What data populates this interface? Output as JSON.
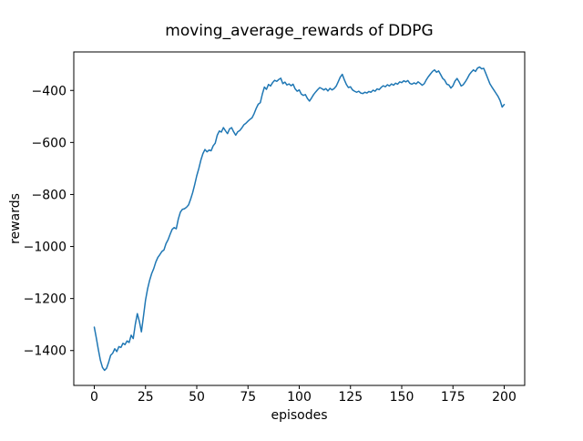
{
  "figure": {
    "background": "#ffffff"
  },
  "chart_data": {
    "type": "line",
    "title": "moving_average_rewards of DDPG",
    "xlabel": "episodes",
    "ylabel": "rewards",
    "grid": false,
    "xlim": [
      -10,
      210
    ],
    "ylim": [
      -1534,
      -252
    ],
    "xticks": [
      {
        "v": 0,
        "label": "0"
      },
      {
        "v": 25,
        "label": "25"
      },
      {
        "v": 50,
        "label": "50"
      },
      {
        "v": 75,
        "label": "75"
      },
      {
        "v": 100,
        "label": "100"
      },
      {
        "v": 125,
        "label": "125"
      },
      {
        "v": 150,
        "label": "150"
      },
      {
        "v": 175,
        "label": "175"
      },
      {
        "v": 200,
        "label": "200"
      }
    ],
    "yticks": [
      {
        "v": -400,
        "label": "−400"
      },
      {
        "v": -600,
        "label": "−600"
      },
      {
        "v": -800,
        "label": "−800"
      },
      {
        "v": -1000,
        "label": "−1000"
      },
      {
        "v": -1200,
        "label": "−1200"
      },
      {
        "v": -1400,
        "label": "−1400"
      }
    ],
    "series": [
      {
        "name": "moving_average_rewards",
        "color": "#1f77b4",
        "x_start": 0,
        "x_step": 1,
        "values": [
          -1310,
          -1352,
          -1397,
          -1438,
          -1465,
          -1476,
          -1468,
          -1445,
          -1418,
          -1410,
          -1393,
          -1404,
          -1385,
          -1388,
          -1372,
          -1377,
          -1363,
          -1369,
          -1341,
          -1354,
          -1300,
          -1258,
          -1288,
          -1328,
          -1268,
          -1206,
          -1163,
          -1130,
          -1104,
          -1085,
          -1060,
          -1042,
          -1031,
          -1019,
          -1013,
          -989,
          -974,
          -953,
          -934,
          -927,
          -932,
          -894,
          -868,
          -857,
          -855,
          -849,
          -840,
          -818,
          -793,
          -762,
          -728,
          -700,
          -668,
          -643,
          -627,
          -636,
          -629,
          -632,
          -613,
          -603,
          -572,
          -556,
          -560,
          -543,
          -555,
          -566,
          -548,
          -543,
          -559,
          -572,
          -559,
          -554,
          -544,
          -532,
          -526,
          -518,
          -511,
          -505,
          -489,
          -469,
          -453,
          -447,
          -414,
          -387,
          -396,
          -377,
          -383,
          -370,
          -361,
          -365,
          -358,
          -353,
          -374,
          -368,
          -379,
          -375,
          -382,
          -376,
          -394,
          -403,
          -398,
          -414,
          -419,
          -416,
          -431,
          -441,
          -429,
          -416,
          -406,
          -397,
          -389,
          -393,
          -398,
          -393,
          -402,
          -392,
          -398,
          -393,
          -384,
          -367,
          -349,
          -338,
          -359,
          -377,
          -389,
          -386,
          -398,
          -403,
          -407,
          -403,
          -410,
          -412,
          -407,
          -410,
          -404,
          -407,
          -399,
          -403,
          -394,
          -397,
          -388,
          -382,
          -386,
          -378,
          -383,
          -375,
          -380,
          -372,
          -376,
          -367,
          -370,
          -363,
          -367,
          -362,
          -373,
          -376,
          -371,
          -375,
          -367,
          -373,
          -380,
          -374,
          -359,
          -347,
          -337,
          -327,
          -321,
          -330,
          -325,
          -339,
          -354,
          -361,
          -376,
          -379,
          -391,
          -382,
          -364,
          -354,
          -367,
          -383,
          -378,
          -367,
          -354,
          -339,
          -329,
          -321,
          -327,
          -314,
          -310,
          -317,
          -315,
          -334,
          -354,
          -374,
          -387,
          -399,
          -411,
          -423,
          -439,
          -464,
          -454
        ]
      }
    ]
  }
}
